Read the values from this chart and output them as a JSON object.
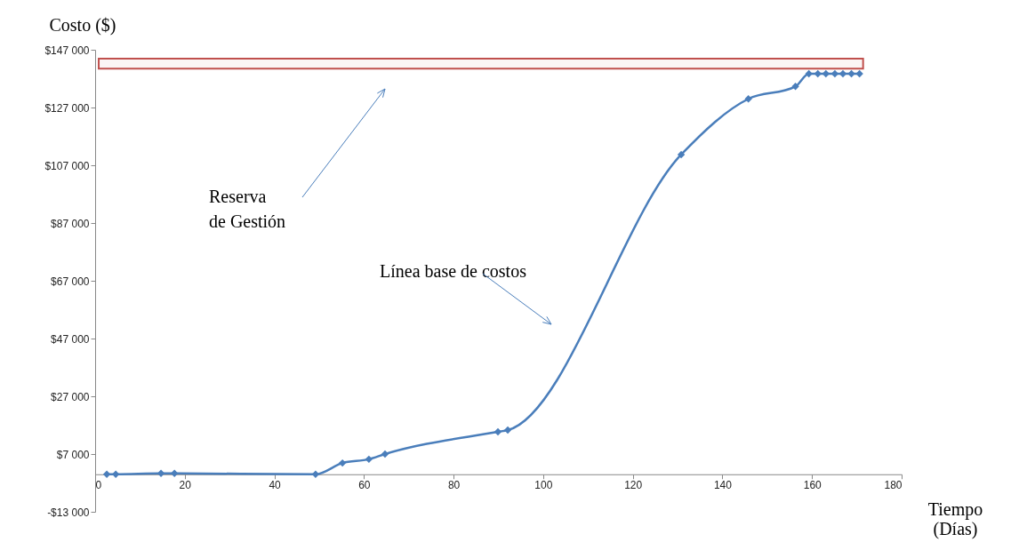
{
  "chart_data": {
    "type": "line",
    "xlabel": "Tiempo\n(Días)",
    "ylabel": "Costo ($)",
    "x": [
      2.6,
      4.6,
      14.7,
      17.7,
      49.2,
      55.2,
      61.1,
      64.7,
      89.9,
      92.1,
      130.8,
      145.8,
      156.3,
      159.3,
      161.3,
      163.1,
      165.1,
      166.9,
      168.8,
      170.6
    ],
    "series": [
      {
        "color": "#4a7ebb",
        "values": [
          0,
          0,
          300,
          300,
          0,
          3900,
          5200,
          7000,
          14700,
          15300,
          110700,
          130000,
          134300,
          138700,
          138700,
          138700,
          138700,
          138700,
          138700,
          138700
        ]
      }
    ],
    "xlim": [
      0,
      180
    ],
    "xticks": [
      0,
      20,
      40,
      60,
      80,
      100,
      120,
      140,
      160,
      180
    ],
    "ylim": [
      -13000,
      147000
    ],
    "yticks": [
      {
        "value": -13000,
        "label": "-$13 000"
      },
      {
        "value": 7000,
        "label": "$7 000"
      },
      {
        "value": 27000,
        "label": "$27 000"
      },
      {
        "value": 47000,
        "label": "$47 000"
      },
      {
        "value": 67000,
        "label": "$67 000"
      },
      {
        "value": 87000,
        "label": "$87 000"
      },
      {
        "value": 107000,
        "label": "$107 000"
      },
      {
        "value": 127000,
        "label": "$127 000"
      },
      {
        "value": 147000,
        "label": "$147 000"
      }
    ],
    "bands": [
      {
        "axis": "y",
        "from": 140500,
        "to": 143900,
        "color": "#c0504d"
      }
    ],
    "annotations": [
      "Reserva\nde Gestión",
      "Línea base de costos"
    ],
    "marker": "diamond",
    "line_style": "solid"
  }
}
